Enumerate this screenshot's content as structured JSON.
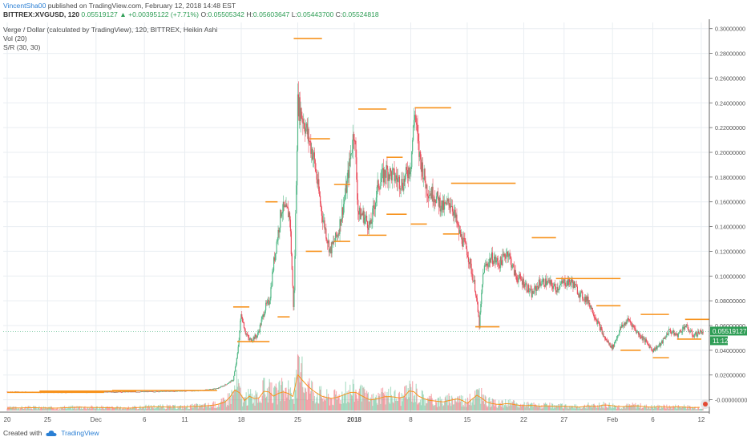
{
  "header": {
    "user": "VincentSha00",
    "published": "published on TradingView.com, February 12, 2018 14:48 EST",
    "symbol": "BITTREX:XVGUSD, 120",
    "last": "0.05519127",
    "change_arrow": "▲",
    "change": "+0.00395122 (+7.71%)",
    "o_label": "O:",
    "o_value": "0.05505342",
    "h_label": "H:",
    "h_value": "0.05603647",
    "l_label": "L:",
    "l_value": "0.05443700",
    "c_label": "C:",
    "c_value": "0.05524818"
  },
  "legend": {
    "main": "Verge / Dollar (calculated by TradingView), 120, BITTREX, Heikin Ashi",
    "vol": "Vol (20)",
    "sr": "S/R (30, 30)"
  },
  "price_label": "0.05519127",
  "countdown_label": "11:12",
  "footer": {
    "created_with": "Created with",
    "brand": "TradingView"
  },
  "colors": {
    "up": "#53b987",
    "down": "#eb4d5c",
    "sr": "#f7931e",
    "axis": "#666666",
    "price_tag": "#2e9d55",
    "grid": "#e9eef2",
    "vol_ma": "#f7931e"
  },
  "chart_data": {
    "type": "line",
    "title": "Verge / Dollar (calculated by TradingView), 120, BITTREX, Heikin Ashi",
    "xlabel": "",
    "ylabel": "",
    "ylim": [
      -0.01,
      0.305
    ],
    "y_ticks": [
      "0.30000000",
      "0.28000000",
      "0.26000000",
      "0.24000000",
      "0.22000000",
      "0.20000000",
      "0.18000000",
      "0.16000000",
      "0.14000000",
      "0.12000000",
      "0.10000000",
      "0.08000000",
      "0.06000000",
      "0.04000000",
      "0.02000000",
      "-0.00000000"
    ],
    "y_tick_values": [
      0.3,
      0.28,
      0.26,
      0.24,
      0.22,
      0.2,
      0.18,
      0.16,
      0.14,
      0.12,
      0.1,
      0.08,
      0.06,
      0.04,
      0.02,
      0.0
    ],
    "x_ticks": [
      "20",
      "25",
      "Dec",
      "6",
      "11",
      "18",
      "25",
      "2018",
      "8",
      "15",
      "22",
      "27",
      "Feb",
      "6",
      "12"
    ],
    "x_tick_days": [
      0,
      5,
      11,
      17,
      22,
      29,
      36,
      43,
      50,
      57,
      64,
      69,
      75,
      80,
      86
    ],
    "x_range_days": [
      -0.5,
      87
    ],
    "series": [
      {
        "days": [
          0,
          3,
          6,
          9,
          12,
          15,
          18,
          21,
          24,
          26,
          27,
          28,
          28.5,
          29,
          29.5,
          30,
          31,
          32,
          32.5,
          33,
          34,
          35,
          35.5,
          36,
          37,
          38,
          39,
          40,
          41,
          42,
          43,
          43.5,
          44,
          45,
          46,
          47,
          48,
          49,
          50,
          50.5,
          51,
          52,
          53,
          54,
          55,
          56,
          57,
          58,
          58.5,
          59,
          60,
          61,
          62,
          63,
          64,
          65,
          66,
          67,
          68,
          69,
          70,
          71,
          72,
          73,
          74,
          75,
          76,
          77,
          78,
          79,
          80,
          81,
          82,
          83,
          84,
          85,
          86
        ],
        "values": [
          0.0065,
          0.0062,
          0.006,
          0.0062,
          0.0063,
          0.0064,
          0.0066,
          0.007,
          0.0075,
          0.009,
          0.012,
          0.016,
          0.035,
          0.07,
          0.055,
          0.048,
          0.052,
          0.075,
          0.08,
          0.11,
          0.155,
          0.15,
          0.07,
          0.24,
          0.22,
          0.195,
          0.15,
          0.12,
          0.135,
          0.17,
          0.22,
          0.15,
          0.15,
          0.14,
          0.175,
          0.185,
          0.18,
          0.175,
          0.19,
          0.235,
          0.2,
          0.17,
          0.165,
          0.155,
          0.16,
          0.135,
          0.12,
          0.09,
          0.06,
          0.105,
          0.115,
          0.11,
          0.12,
          0.1,
          0.095,
          0.085,
          0.095,
          0.095,
          0.09,
          0.095,
          0.095,
          0.085,
          0.08,
          0.065,
          0.05,
          0.042,
          0.058,
          0.065,
          0.055,
          0.048,
          0.04,
          0.045,
          0.056,
          0.052,
          0.06,
          0.052,
          0.0552
        ]
      }
    ],
    "sr_levels": [
      {
        "from": 0,
        "to": 12,
        "value": 0.006
      },
      {
        "from": 4,
        "to": 16,
        "value": 0.007
      },
      {
        "from": 13,
        "to": 26,
        "value": 0.0075
      },
      {
        "from": 28,
        "to": 30,
        "value": 0.075
      },
      {
        "from": 28.5,
        "to": 32.5,
        "value": 0.047
      },
      {
        "from": 32,
        "to": 33.5,
        "value": 0.16
      },
      {
        "from": 33.5,
        "to": 35,
        "value": 0.067
      },
      {
        "from": 35.5,
        "to": 39,
        "value": 0.292
      },
      {
        "from": 37.5,
        "to": 40,
        "value": 0.211
      },
      {
        "from": 37,
        "to": 39,
        "value": 0.12
      },
      {
        "from": 40.5,
        "to": 42.5,
        "value": 0.174
      },
      {
        "from": 40.5,
        "to": 42.5,
        "value": 0.128
      },
      {
        "from": 43.5,
        "to": 47,
        "value": 0.235
      },
      {
        "from": 43.5,
        "to": 47,
        "value": 0.133
      },
      {
        "from": 47,
        "to": 49,
        "value": 0.196
      },
      {
        "from": 47,
        "to": 49.5,
        "value": 0.15
      },
      {
        "from": 50.5,
        "to": 55,
        "value": 0.236
      },
      {
        "from": 50,
        "to": 52,
        "value": 0.142
      },
      {
        "from": 55,
        "to": 63,
        "value": 0.175
      },
      {
        "from": 54,
        "to": 56,
        "value": 0.134
      },
      {
        "from": 58,
        "to": 61,
        "value": 0.059
      },
      {
        "from": 65,
        "to": 68,
        "value": 0.131
      },
      {
        "from": 68,
        "to": 76,
        "value": 0.098
      },
      {
        "from": 73,
        "to": 76,
        "value": 0.076
      },
      {
        "from": 76,
        "to": 78.5,
        "value": 0.04
      },
      {
        "from": 78.5,
        "to": 82,
        "value": 0.069
      },
      {
        "from": 80,
        "to": 82,
        "value": 0.034
      },
      {
        "from": 84,
        "to": 87,
        "value": 0.065
      },
      {
        "from": 83,
        "to": 86,
        "value": 0.049
      }
    ],
    "volume": {
      "days": [
        0,
        3,
        6,
        9,
        12,
        15,
        18,
        21,
        24,
        26,
        27,
        28,
        28.5,
        29,
        29.5,
        30,
        31,
        32,
        33,
        34,
        35,
        35.5,
        36,
        37,
        38,
        39,
        40,
        41,
        42,
        43,
        44,
        45,
        46,
        47,
        48,
        49,
        50,
        50.5,
        51,
        52,
        53,
        54,
        55,
        56,
        57,
        58,
        58.5,
        59,
        60,
        61,
        62,
        63,
        64,
        65,
        66,
        67,
        68,
        69,
        70,
        71,
        72,
        73,
        74,
        75,
        76,
        77,
        78,
        79,
        80,
        81,
        82,
        83,
        84,
        85,
        86
      ],
      "values": [
        0.05,
        0.06,
        0.05,
        0.07,
        0.06,
        0.05,
        0.08,
        0.07,
        0.09,
        0.12,
        0.18,
        0.35,
        0.55,
        0.25,
        0.2,
        0.3,
        0.22,
        0.45,
        0.3,
        0.4,
        0.35,
        0.28,
        0.75,
        0.55,
        0.4,
        0.3,
        0.25,
        0.28,
        0.35,
        0.4,
        0.3,
        0.22,
        0.25,
        0.3,
        0.28,
        0.25,
        0.45,
        0.38,
        0.3,
        0.22,
        0.2,
        0.18,
        0.22,
        0.25,
        0.15,
        0.3,
        0.35,
        0.2,
        0.15,
        0.12,
        0.15,
        0.12,
        0.1,
        0.11,
        0.09,
        0.1,
        0.08,
        0.09,
        0.08,
        0.07,
        0.1,
        0.08,
        0.12,
        0.1,
        0.08,
        0.09,
        0.1,
        0.08,
        0.07,
        0.08,
        0.07,
        0.08,
        0.07,
        0.06,
        0.07
      ]
    }
  }
}
